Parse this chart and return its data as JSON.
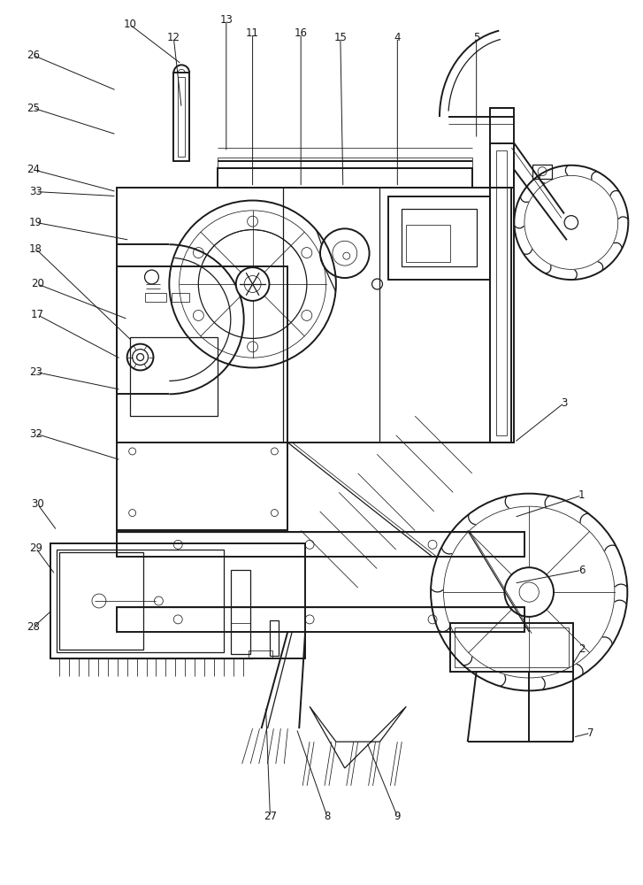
{
  "bg_color": "#ffffff",
  "line_color": "#1a1a1a",
  "fig_width": 7.27,
  "fig_height": 10.0,
  "lw_main": 1.4,
  "lw_med": 0.9,
  "lw_thin": 0.55,
  "label_fs": 8.5
}
